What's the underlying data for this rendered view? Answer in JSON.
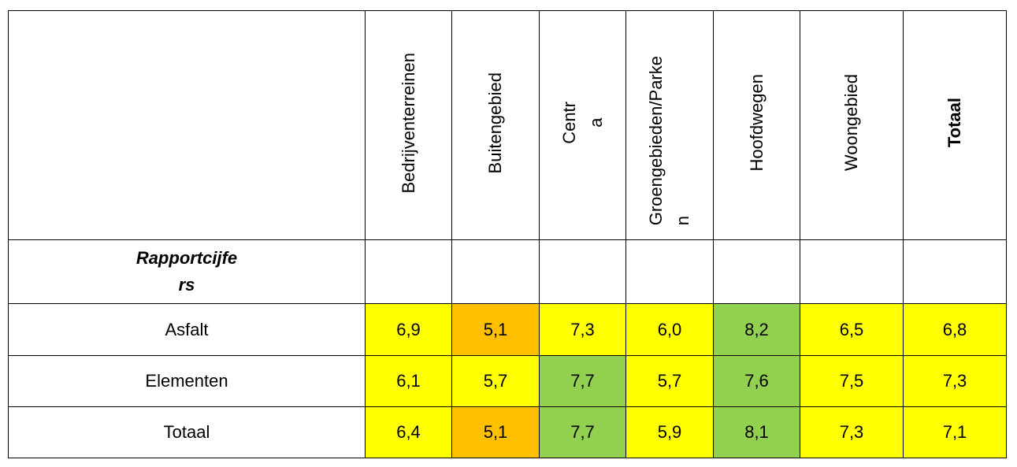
{
  "columns": [
    "Bedrijventerreinen",
    "Buitengebied",
    "Centr\na",
    "Groengebieden/Parke\nn",
    "Hoofdwegen",
    "Woongebied",
    "Totaal"
  ],
  "section_label": "Rapportcijfe\nrs",
  "rows": [
    {
      "label": "Asfalt",
      "values": [
        "6,9",
        "5,1",
        "7,3",
        "6,0",
        "8,2",
        "6,5",
        "6,8"
      ],
      "colors": [
        "y",
        "o",
        "y",
        "y",
        "g",
        "y",
        "y"
      ]
    },
    {
      "label": "Elementen",
      "values": [
        "6,1",
        "5,7",
        "7,7",
        "5,7",
        "7,6",
        "7,5",
        "7,3"
      ],
      "colors": [
        "y",
        "y",
        "g",
        "y",
        "g",
        "y",
        "y"
      ]
    },
    {
      "label": "Totaal",
      "values": [
        "6,4",
        "5,1",
        "7,7",
        "5,9",
        "8,1",
        "7,3",
        "7,1"
      ],
      "colors": [
        "y",
        "o",
        "g",
        "y",
        "g",
        "y",
        "y"
      ]
    }
  ],
  "legend_colors": {
    "y": "#FFFF00",
    "o": "#FFC000",
    "g": "#92D050"
  }
}
